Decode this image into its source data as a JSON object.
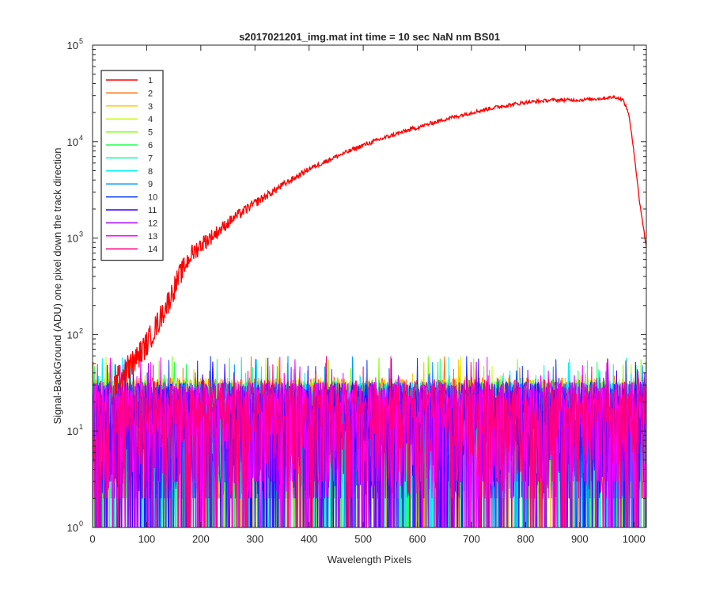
{
  "chart_data": {
    "type": "line",
    "title": "s2017021201_img.mat int time = 10 sec  NaN nm BS01",
    "xlabel": "Wavelength Pixels",
    "ylabel": "Signal-BackGround (ADU) one pixel down the track direction",
    "xlim": [
      0,
      1023
    ],
    "ylim": [
      1,
      100000
    ],
    "yscale": "log",
    "x_ticks": [
      "0",
      "100",
      "200",
      "300",
      "400",
      "500",
      "600",
      "700",
      "800",
      "900",
      "1000"
    ],
    "x_tick_values": [
      0,
      100,
      200,
      300,
      400,
      500,
      600,
      700,
      800,
      900,
      1000
    ],
    "y_ticks": [
      {
        "value": 1,
        "exp": "0"
      },
      {
        "value": 10,
        "exp": "1"
      },
      {
        "value": 100,
        "exp": "2"
      },
      {
        "value": 1000,
        "exp": "3"
      },
      {
        "value": 10000,
        "exp": "4"
      },
      {
        "value": 100000,
        "exp": "5"
      }
    ],
    "y_tick_base": "10",
    "grid": false,
    "legend_position": "top-left",
    "series": [
      {
        "name": "1",
        "color": "#ff0000",
        "points": [
          [
            40,
            30
          ],
          [
            60,
            42
          ],
          [
            80,
            55
          ],
          [
            100,
            80
          ],
          [
            120,
            130
          ],
          [
            140,
            220
          ],
          [
            160,
            400
          ],
          [
            180,
            650
          ],
          [
            200,
            850
          ],
          [
            230,
            1150
          ],
          [
            260,
            1600
          ],
          [
            300,
            2300
          ],
          [
            350,
            3500
          ],
          [
            400,
            5200
          ],
          [
            450,
            7000
          ],
          [
            500,
            9200
          ],
          [
            550,
            11500
          ],
          [
            600,
            14000
          ],
          [
            650,
            17000
          ],
          [
            700,
            20000
          ],
          [
            750,
            23000
          ],
          [
            800,
            25500
          ],
          [
            850,
            27000
          ],
          [
            900,
            27000
          ],
          [
            940,
            28000
          ],
          [
            965,
            29000
          ],
          [
            980,
            27000
          ],
          [
            990,
            20000
          ],
          [
            1000,
            8000
          ],
          [
            1010,
            2500
          ],
          [
            1023,
            800
          ]
        ],
        "noise": [
          [
            40,
            0.3
          ],
          [
            150,
            0.25
          ],
          [
            250,
            0.12
          ],
          [
            400,
            0.05
          ],
          [
            1023,
            0.03
          ]
        ]
      },
      {
        "name": "2",
        "color": "#ff6a00",
        "noise_level": 18
      },
      {
        "name": "3",
        "color": "#ffc800",
        "noise_level": 18
      },
      {
        "name": "4",
        "color": "#c8ff00",
        "noise_level": 17
      },
      {
        "name": "5",
        "color": "#78ff00",
        "noise_level": 17
      },
      {
        "name": "6",
        "color": "#1eff50",
        "noise_level": 17
      },
      {
        "name": "7",
        "color": "#00ffa0",
        "noise_level": 16
      },
      {
        "name": "8",
        "color": "#00f0ff",
        "noise_level": 16
      },
      {
        "name": "9",
        "color": "#0096ff",
        "noise_level": 16
      },
      {
        "name": "10",
        "color": "#0032ff",
        "noise_level": 16
      },
      {
        "name": "11",
        "color": "#3200ff",
        "noise_level": 16
      },
      {
        "name": "12",
        "color": "#a000ff",
        "noise_level": 16
      },
      {
        "name": "13",
        "color": "#ff00ff",
        "noise_level": 16
      },
      {
        "name": "14",
        "color": "#ff0080",
        "noise_level": 17
      }
    ]
  }
}
